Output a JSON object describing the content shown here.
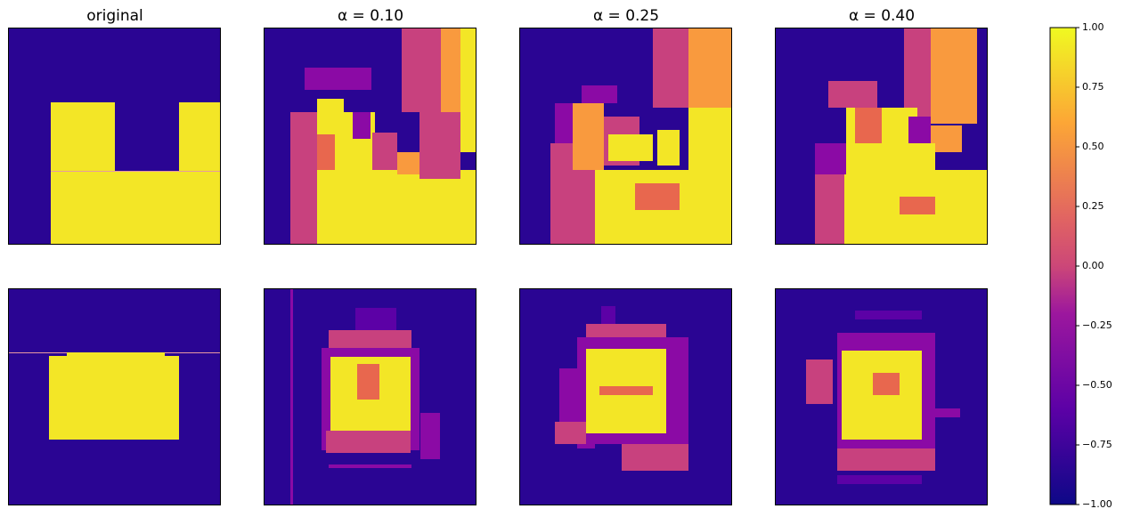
{
  "titles": [
    "original",
    "α = 0.10",
    "α = 0.25",
    "α = 0.40"
  ],
  "colorbar": {
    "lim": [
      -1,
      1
    ],
    "ticks": [
      {
        "value": -1,
        "label": "−1.00"
      },
      {
        "value": -0.75,
        "label": "−0.75"
      },
      {
        "value": -0.5,
        "label": "−0.50"
      },
      {
        "value": -0.25,
        "label": "−0.25"
      },
      {
        "value": 0,
        "label": "0.00"
      },
      {
        "value": 0.25,
        "label": "0.25"
      },
      {
        "value": 0.5,
        "label": "0.50"
      },
      {
        "value": 0.75,
        "label": "0.75"
      },
      {
        "value": 1,
        "label": "1.00"
      }
    ]
  }
}
